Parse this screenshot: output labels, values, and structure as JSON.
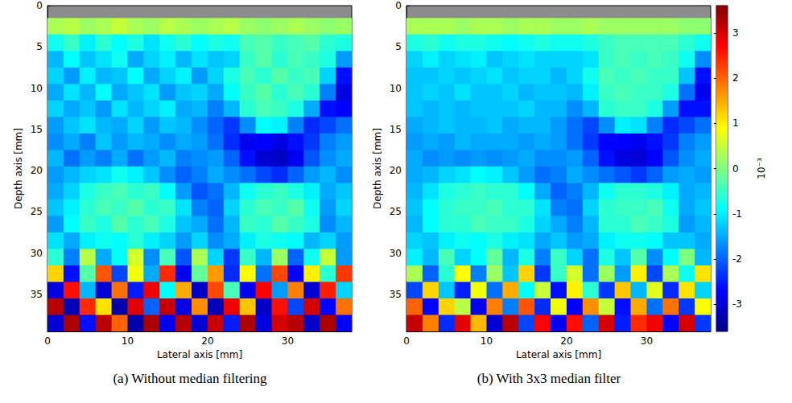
{
  "chart_data": [
    {
      "type": "heatmap",
      "caption": "(a) Without median filtering",
      "xlabel": "Lateral axis [mm]",
      "ylabel": "Depth axis [mm]",
      "xlim": [
        0,
        38
      ],
      "xticks": [
        0,
        10,
        20,
        30
      ],
      "ylim": [
        0,
        39.5
      ],
      "yticks": [
        0,
        5,
        10,
        15,
        20,
        25,
        30,
        35
      ],
      "x": [
        1,
        3,
        5,
        7,
        9,
        11,
        13,
        15,
        17,
        19,
        21,
        23,
        25,
        27,
        29,
        31,
        33,
        35,
        37
      ],
      "y": [
        2.5,
        4.5,
        6.5,
        8.5,
        10.5,
        12.5,
        14.5,
        16.5,
        18.5,
        20.5,
        22.5,
        24.5,
        26.5,
        28.5,
        30.5,
        32.5,
        34.5,
        36.5,
        38.5
      ],
      "values": [
        [
          0.3,
          0.4,
          0.2,
          0.3,
          0.5,
          0.3,
          0.2,
          0.4,
          0.3,
          0.2,
          0.3,
          0.4,
          0.2,
          0.1,
          0.2,
          0.3,
          0.2,
          0.1,
          0.2
        ],
        [
          -0.8,
          -0.5,
          -1.0,
          -0.6,
          -0.9,
          -0.7,
          -1.1,
          -0.8,
          -0.6,
          -0.9,
          -0.7,
          -0.8,
          -0.4,
          -0.3,
          -0.5,
          -0.4,
          -0.3,
          -0.6,
          -0.7
        ],
        [
          -1.4,
          -0.9,
          -1.3,
          -1.1,
          -0.8,
          -1.5,
          -1.2,
          -1.0,
          -1.4,
          -1.1,
          -1.3,
          -1.2,
          -0.5,
          -0.3,
          -0.6,
          -0.4,
          -0.5,
          -0.7,
          -1.6
        ],
        [
          -1.2,
          -1.6,
          -1.0,
          -1.4,
          -1.3,
          -0.9,
          -1.5,
          -1.2,
          -1.0,
          -1.6,
          -1.2,
          -0.7,
          -0.4,
          -0.6,
          -0.3,
          -0.5,
          -0.4,
          -1.2,
          -2.6
        ],
        [
          -1.5,
          -1.1,
          -1.4,
          -0.9,
          -1.5,
          -1.3,
          -1.1,
          -1.6,
          -1.3,
          -1.2,
          -1.5,
          -0.9,
          -0.5,
          -0.3,
          -0.6,
          -0.4,
          -0.6,
          -1.8,
          -2.9
        ],
        [
          -1.2,
          -1.5,
          -1.3,
          -1.6,
          -1.1,
          -1.4,
          -1.2,
          -1.0,
          -1.5,
          -1.4,
          -1.8,
          -1.4,
          -0.6,
          -0.4,
          -0.5,
          -0.7,
          -1.5,
          -2.6,
          -2.7
        ],
        [
          -1.6,
          -1.3,
          -1.1,
          -1.4,
          -1.5,
          -1.2,
          -1.6,
          -1.3,
          -1.4,
          -1.7,
          -2.0,
          -2.3,
          -1.7,
          -0.9,
          -1.0,
          -1.8,
          -2.4,
          -2.2,
          -1.9
        ],
        [
          -1.7,
          -1.5,
          -1.8,
          -1.3,
          -1.6,
          -1.4,
          -1.5,
          -1.7,
          -1.5,
          -1.6,
          -1.9,
          -2.4,
          -2.8,
          -2.7,
          -2.9,
          -2.6,
          -2.3,
          -1.8,
          -1.6
        ],
        [
          -1.4,
          -1.9,
          -1.6,
          -1.8,
          -1.5,
          -1.9,
          -1.6,
          -1.4,
          -1.8,
          -1.7,
          -1.6,
          -2.0,
          -2.6,
          -3.0,
          -3.1,
          -2.8,
          -2.1,
          -1.7,
          -1.5
        ],
        [
          -1.6,
          -1.4,
          -1.2,
          -1.1,
          -0.8,
          -1.0,
          -1.3,
          -1.7,
          -2.0,
          -1.8,
          -1.5,
          -1.7,
          -1.9,
          -2.2,
          -2.4,
          -2.0,
          -1.6,
          -1.4,
          -1.7
        ],
        [
          -1.5,
          -1.2,
          -0.7,
          -0.5,
          -0.4,
          -0.6,
          -0.5,
          -0.9,
          -1.6,
          -2.1,
          -1.9,
          -1.4,
          -0.8,
          -0.6,
          -0.5,
          -0.7,
          -1.0,
          -1.5,
          -1.3
        ],
        [
          -1.3,
          -1.0,
          -0.6,
          -0.4,
          -0.5,
          -0.3,
          -0.6,
          -0.5,
          -1.1,
          -1.8,
          -2.0,
          -1.2,
          -0.6,
          -0.4,
          -0.5,
          -0.3,
          -0.8,
          -1.6,
          -1.2
        ],
        [
          -1.6,
          -0.9,
          -0.5,
          -0.7,
          -0.3,
          -0.6,
          -0.4,
          -0.7,
          -1.3,
          -1.5,
          -1.9,
          -1.4,
          -0.5,
          -0.6,
          -0.3,
          -0.5,
          -0.7,
          -1.7,
          -1.4
        ],
        [
          -1.1,
          -1.5,
          -1.0,
          -0.8,
          -0.9,
          -0.6,
          -1.0,
          -1.2,
          -1.6,
          -1.2,
          -1.7,
          -1.5,
          -1.0,
          -0.7,
          -0.8,
          -0.9,
          -1.4,
          -1.2,
          -1.6
        ],
        [
          -0.6,
          -1.8,
          0.4,
          -1.5,
          -0.9,
          0.6,
          -1.7,
          -0.4,
          -2.1,
          0.3,
          -1.2,
          -2.3,
          -0.5,
          -1.4,
          0.2,
          -2.0,
          -0.8,
          0.5,
          -1.6
        ],
        [
          1.2,
          -2.6,
          -0.3,
          2.1,
          -2.2,
          0.8,
          -1.5,
          2.4,
          -2.8,
          -0.2,
          1.6,
          -2.4,
          0.9,
          -1.9,
          2.2,
          -2.7,
          1.0,
          -0.6,
          2.3
        ],
        [
          -2.9,
          2.6,
          -1.4,
          -3.0,
          1.9,
          -2.5,
          2.8,
          -0.9,
          1.5,
          -3.1,
          2.2,
          -0.4,
          -2.8,
          2.7,
          -1.6,
          1.8,
          -3.0,
          2.5,
          -1.2
        ],
        [
          3.2,
          -3.2,
          2.4,
          1.1,
          -3.3,
          2.9,
          -2.0,
          3.1,
          -2.9,
          1.7,
          -3.2,
          2.8,
          1.3,
          -3.1,
          2.6,
          -2.2,
          3.0,
          -2.7,
          1.9
        ],
        [
          -3.0,
          3.3,
          -2.6,
          3.2,
          2.0,
          -3.3,
          3.3,
          -2.8,
          3.2,
          -3.0,
          3.1,
          -2.5,
          3.3,
          -2.9,
          3.0,
          3.2,
          -3.1,
          3.3,
          -2.7
        ]
      ]
    },
    {
      "type": "heatmap",
      "caption": "(b) With 3x3 median filter",
      "xlabel": "Lateral axis [mm]",
      "ylabel": "Depth axis [mm]",
      "xlim": [
        0,
        38
      ],
      "xticks": [
        0,
        10,
        20,
        30
      ],
      "ylim": [
        0,
        39.5
      ],
      "yticks": [
        0,
        5,
        10,
        15,
        20,
        25,
        30,
        35
      ],
      "x": [
        1,
        3,
        5,
        7,
        9,
        11,
        13,
        15,
        17,
        19,
        21,
        23,
        25,
        27,
        29,
        31,
        33,
        35,
        37
      ],
      "y": [
        2.5,
        4.5,
        6.5,
        8.5,
        10.5,
        12.5,
        14.5,
        16.5,
        18.5,
        20.5,
        22.5,
        24.5,
        26.5,
        28.5,
        30.5,
        32.5,
        34.5,
        36.5,
        38.5
      ],
      "values": [
        [
          0.3,
          0.3,
          0.3,
          0.2,
          0.3,
          0.3,
          0.2,
          0.3,
          0.3,
          0.2,
          0.2,
          0.3,
          0.2,
          0.2,
          0.2,
          0.2,
          0.2,
          0.1,
          0.1
        ],
        [
          -0.7,
          -0.6,
          -0.8,
          -0.7,
          -0.7,
          -0.8,
          -0.9,
          -0.8,
          -0.7,
          -0.8,
          -0.8,
          -0.7,
          -0.5,
          -0.4,
          -0.4,
          -0.4,
          -0.4,
          -0.6,
          -0.8
        ],
        [
          -1.2,
          -1.0,
          -1.2,
          -1.1,
          -1.0,
          -1.3,
          -1.2,
          -1.1,
          -1.2,
          -1.2,
          -1.2,
          -1.1,
          -0.5,
          -0.4,
          -0.5,
          -0.4,
          -0.5,
          -0.8,
          -1.7
        ],
        [
          -1.3,
          -1.3,
          -1.2,
          -1.3,
          -1.2,
          -1.1,
          -1.3,
          -1.2,
          -1.2,
          -1.4,
          -1.2,
          -0.8,
          -0.4,
          -0.5,
          -0.4,
          -0.5,
          -0.5,
          -1.3,
          -2.6
        ],
        [
          -1.3,
          -1.2,
          -1.3,
          -1.1,
          -1.3,
          -1.3,
          -1.2,
          -1.4,
          -1.3,
          -1.3,
          -1.4,
          -1.0,
          -0.5,
          -0.4,
          -0.5,
          -0.5,
          -0.7,
          -1.9,
          -2.8
        ],
        [
          -1.3,
          -1.4,
          -1.3,
          -1.4,
          -1.3,
          -1.3,
          -1.3,
          -1.2,
          -1.4,
          -1.4,
          -1.7,
          -1.4,
          -0.6,
          -0.5,
          -0.5,
          -0.7,
          -1.6,
          -2.6,
          -2.6
        ],
        [
          -1.5,
          -1.4,
          -1.3,
          -1.4,
          -1.4,
          -1.3,
          -1.5,
          -1.4,
          -1.4,
          -1.6,
          -1.9,
          -2.2,
          -1.7,
          -1.0,
          -1.1,
          -1.8,
          -2.4,
          -2.2,
          -1.9
        ],
        [
          -1.6,
          -1.5,
          -1.6,
          -1.4,
          -1.5,
          -1.5,
          -1.5,
          -1.6,
          -1.5,
          -1.6,
          -1.9,
          -2.3,
          -2.7,
          -2.7,
          -2.8,
          -2.6,
          -2.3,
          -1.8,
          -1.6
        ],
        [
          -1.5,
          -1.7,
          -1.6,
          -1.7,
          -1.6,
          -1.7,
          -1.6,
          -1.5,
          -1.7,
          -1.7,
          -1.6,
          -2.0,
          -2.6,
          -2.9,
          -3.0,
          -2.7,
          -2.1,
          -1.7,
          -1.5
        ],
        [
          -1.5,
          -1.4,
          -1.2,
          -1.1,
          -0.9,
          -1.0,
          -1.3,
          -1.6,
          -1.9,
          -1.8,
          -1.5,
          -1.7,
          -1.9,
          -2.1,
          -2.3,
          -2.0,
          -1.6,
          -1.5,
          -1.6
        ],
        [
          -1.4,
          -1.1,
          -0.7,
          -0.6,
          -0.5,
          -0.6,
          -0.6,
          -0.9,
          -1.5,
          -2.0,
          -1.8,
          -1.4,
          -0.8,
          -0.6,
          -0.6,
          -0.7,
          -1.0,
          -1.5,
          -1.4
        ],
        [
          -1.3,
          -0.9,
          -0.6,
          -0.5,
          -0.5,
          -0.4,
          -0.6,
          -0.6,
          -1.1,
          -1.8,
          -1.9,
          -1.2,
          -0.6,
          -0.5,
          -0.5,
          -0.4,
          -0.8,
          -1.5,
          -1.3
        ],
        [
          -1.4,
          -0.9,
          -0.6,
          -0.6,
          -0.4,
          -0.5,
          -0.5,
          -0.7,
          -1.2,
          -1.5,
          -1.8,
          -1.4,
          -0.6,
          -0.6,
          -0.4,
          -0.5,
          -0.7,
          -1.6,
          -1.4
        ],
        [
          -1.2,
          -1.3,
          -1.0,
          -0.8,
          -0.9,
          -0.7,
          -1.0,
          -1.1,
          -1.5,
          -1.3,
          -1.6,
          -1.5,
          -1.0,
          -0.8,
          -0.8,
          -0.9,
          -1.3,
          -1.3,
          -1.5
        ],
        [
          -1.0,
          -1.4,
          -0.4,
          -1.2,
          -0.9,
          -0.2,
          -1.4,
          -0.7,
          -1.8,
          -0.5,
          -1.2,
          -1.9,
          -0.7,
          -1.3,
          -0.3,
          -1.7,
          -0.9,
          0.0,
          -1.4
        ],
        [
          0.3,
          -2.0,
          -0.6,
          0.9,
          -1.8,
          0.2,
          -1.3,
          1.2,
          -2.3,
          -0.5,
          0.6,
          -1.9,
          0.2,
          -1.6,
          1.0,
          -2.2,
          0.3,
          -0.8,
          1.1
        ],
        [
          -2.2,
          1.2,
          -1.3,
          -2.5,
          0.8,
          -1.9,
          1.5,
          -0.9,
          0.5,
          -2.6,
          1.0,
          -0.6,
          -2.3,
          1.3,
          -1.4,
          0.7,
          -2.4,
          1.1,
          -1.2
        ],
        [
          2.0,
          -2.7,
          1.2,
          0.4,
          -2.8,
          1.8,
          -1.8,
          2.1,
          -2.4,
          0.8,
          -2.7,
          1.7,
          0.5,
          -2.6,
          1.5,
          -1.9,
          1.9,
          -2.3,
          0.9
        ],
        [
          3.1,
          1.8,
          -2.4,
          2.9,
          1.4,
          -3.0,
          3.2,
          -2.2,
          2.7,
          -2.8,
          2.6,
          -2.0,
          3.0,
          -2.5,
          2.4,
          2.8,
          -2.7,
          3.0,
          -2.3
        ]
      ],
      "colorbar": {
        "range": [
          -3.6,
          3.6
        ],
        "ticks": [
          -3,
          -2,
          -1,
          0,
          1,
          2,
          3
        ],
        "label": "10⁻³"
      }
    }
  ]
}
